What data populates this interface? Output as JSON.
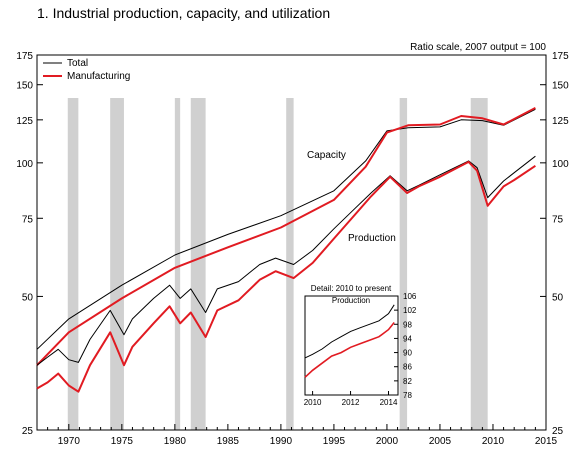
{
  "chart_data": {
    "type": "line",
    "title": "1.  Industrial production, capacity, and utilization",
    "subtitle": "Ratio scale, 2007 output = 100",
    "legend": [
      {
        "name": "Total",
        "color": "#000000"
      },
      {
        "name": "Manufacturing",
        "color": "#e11b22"
      }
    ],
    "y_scale": "log",
    "ylim": [
      25,
      175
    ],
    "xlim": [
      1967,
      2015
    ],
    "y_ticks": [
      25,
      50,
      75,
      100,
      125,
      150,
      175
    ],
    "x_ticks": [
      1970,
      1975,
      1980,
      1985,
      1990,
      1995,
      2000,
      2005,
      2010,
      2015
    ],
    "recession_shading": [
      [
        1969.9,
        1970.9
      ],
      [
        1973.9,
        1975.2
      ],
      [
        1980.0,
        1980.5
      ],
      [
        1981.5,
        1982.9
      ],
      [
        1990.5,
        1991.2
      ],
      [
        2001.2,
        2001.9
      ],
      [
        2007.9,
        2009.5
      ]
    ],
    "annotations": [
      "Capacity",
      "Production"
    ],
    "series": [
      {
        "name": "Total",
        "kind": "capacity",
        "x": [
          1967,
          1970,
          1975,
          1980,
          1985,
          1990,
          1995,
          1998,
          2000,
          2002,
          2005,
          2007,
          2009,
          2011,
          2014
        ],
        "y": [
          38.0,
          44.5,
          53.0,
          62.0,
          69.0,
          76.0,
          86.5,
          101.0,
          118.0,
          120.0,
          120.5,
          125.0,
          124.5,
          121.5,
          132.0
        ]
      },
      {
        "name": "Manufacturing",
        "kind": "capacity",
        "x": [
          1967,
          1970,
          1975,
          1980,
          1985,
          1990,
          1995,
          1998,
          2000,
          2002,
          2005,
          2007,
          2009,
          2011,
          2014
        ],
        "y": [
          35.0,
          41.5,
          49.5,
          58.0,
          64.5,
          71.5,
          82.5,
          98.0,
          117.0,
          121.5,
          122.0,
          127.5,
          126.0,
          122.0,
          133.0
        ]
      },
      {
        "name": "Total",
        "kind": "production",
        "x": [
          1967,
          1968,
          1969,
          1970,
          1970.9,
          1972,
          1973.9,
          1975.2,
          1976,
          1978,
          1979.5,
          1980.5,
          1981.5,
          1982.9,
          1984,
          1986,
          1988,
          1989.5,
          1991.2,
          1993,
          1995,
          1997,
          1998.5,
          2000.3,
          2001.9,
          2003,
          2005,
          2007.7,
          2008.5,
          2009.5,
          2011,
          2012,
          2014
        ],
        "y": [
          35.0,
          36.5,
          38.0,
          36.0,
          35.5,
          40.0,
          46.5,
          41.0,
          44.5,
          49.5,
          53.0,
          49.5,
          52.0,
          46.0,
          52.0,
          54.0,
          59.0,
          61.0,
          59.0,
          63.5,
          71.0,
          79.0,
          85.5,
          93.5,
          86.5,
          89.0,
          94.0,
          101.0,
          97.5,
          83.5,
          91.0,
          95.0,
          103.5
        ]
      },
      {
        "name": "Manufacturing",
        "kind": "production",
        "x": [
          1967,
          1968,
          1969,
          1970,
          1970.9,
          1972,
          1973.9,
          1975.2,
          1976,
          1978,
          1979.5,
          1980.5,
          1981.5,
          1982.9,
          1984,
          1986,
          1988,
          1989.5,
          1991.2,
          1993,
          1995,
          1997,
          1998.5,
          2000.3,
          2001.9,
          2003,
          2005,
          2007.7,
          2008.5,
          2009.5,
          2011,
          2012,
          2014
        ],
        "y": [
          31.0,
          32.0,
          33.5,
          31.5,
          30.5,
          35.0,
          41.5,
          35.0,
          38.5,
          43.5,
          47.5,
          43.5,
          46.0,
          40.5,
          46.5,
          49.0,
          54.5,
          57.0,
          55.0,
          59.5,
          67.5,
          76.5,
          84.0,
          93.0,
          85.5,
          88.5,
          93.0,
          100.5,
          96.0,
          80.0,
          88.5,
          91.5,
          98.5
        ]
      }
    ],
    "inset": {
      "title_line1": "Detail: 2010 to present",
      "title_line2": "Production",
      "xlim": [
        2009.6,
        2014.5
      ],
      "ylim": [
        78,
        106
      ],
      "y_ticks": [
        78,
        82,
        86,
        90,
        94,
        98,
        102,
        106
      ],
      "x_ticks": [
        2010,
        2012,
        2014
      ],
      "series": [
        {
          "name": "Total",
          "x": [
            2009.6,
            2010,
            2010.5,
            2011,
            2011.5,
            2012,
            2012.5,
            2013,
            2013.5,
            2014,
            2014.3
          ],
          "y": [
            88.5,
            89.5,
            91.0,
            93.0,
            94.5,
            96.0,
            97.0,
            98.0,
            99.0,
            101.0,
            103.5
          ]
        },
        {
          "name": "Manufacturing",
          "x": [
            2009.6,
            2010,
            2010.5,
            2011,
            2011.5,
            2012,
            2012.5,
            2013,
            2013.5,
            2014,
            2014.3
          ],
          "y": [
            83.0,
            85.0,
            87.0,
            89.0,
            90.0,
            91.5,
            92.5,
            93.5,
            94.5,
            96.5,
            98.5
          ]
        }
      ]
    }
  }
}
